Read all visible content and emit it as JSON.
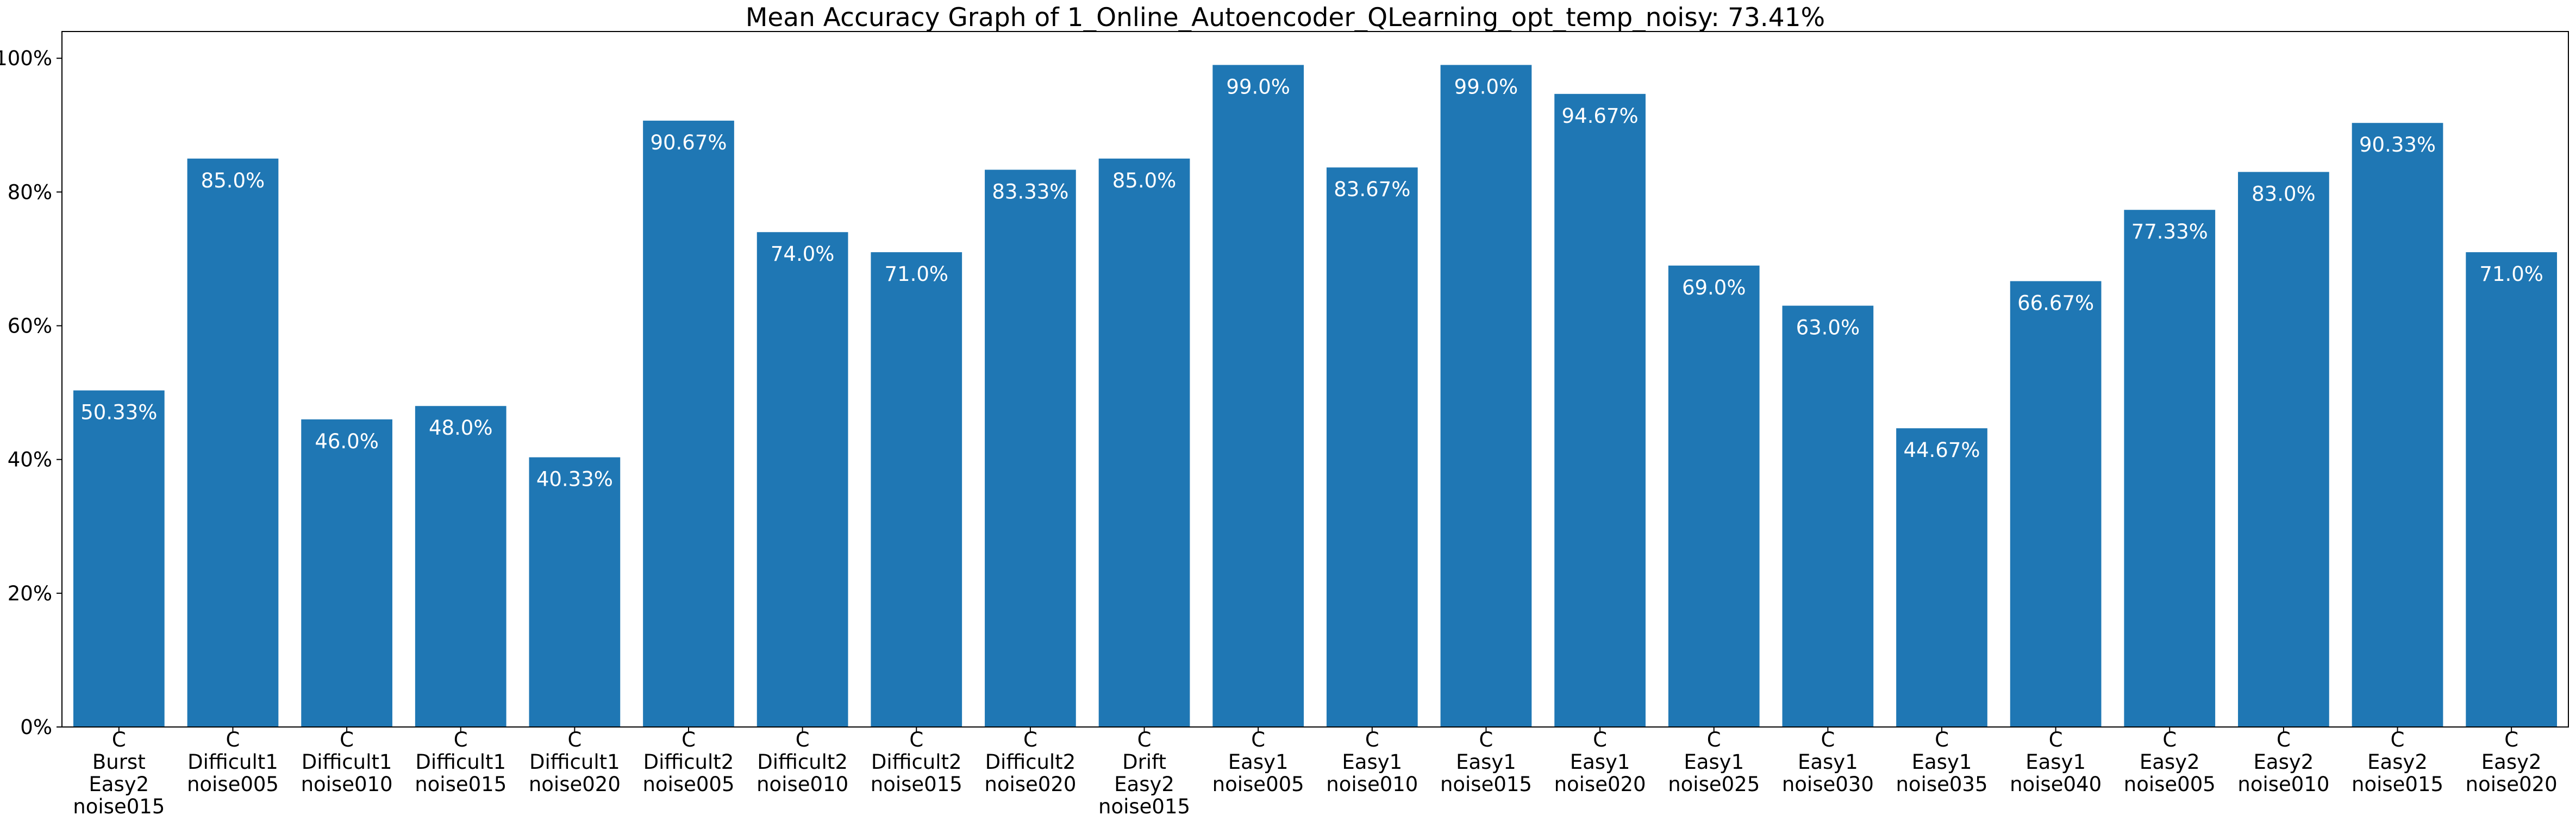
{
  "chart_data": {
    "type": "bar",
    "title": "Mean Accuracy Graph of 1_Online_Autoencoder_QLearning_opt_temp_noisy: 73.41%",
    "xlabel": "",
    "ylabel": "",
    "ylim": [
      0,
      104
    ],
    "grid": false,
    "legend": "none",
    "bar_color": "#1f77b4",
    "label_color": "#ffffff",
    "y_ticks": [
      {
        "value": 0,
        "label": "0%"
      },
      {
        "value": 20,
        "label": "20%"
      },
      {
        "value": 40,
        "label": "40%"
      },
      {
        "value": 60,
        "label": "60%"
      },
      {
        "value": 80,
        "label": "80%"
      },
      {
        "value": 100,
        "label": "100%"
      }
    ],
    "categories": [
      [
        "C",
        "Burst",
        "Easy2",
        "noise015"
      ],
      [
        "C",
        "Difficult1",
        "noise005"
      ],
      [
        "C",
        "Difficult1",
        "noise010"
      ],
      [
        "C",
        "Difficult1",
        "noise015"
      ],
      [
        "C",
        "Difficult1",
        "noise020"
      ],
      [
        "C",
        "Difficult2",
        "noise005"
      ],
      [
        "C",
        "Difficult2",
        "noise010"
      ],
      [
        "C",
        "Difficult2",
        "noise015"
      ],
      [
        "C",
        "Difficult2",
        "noise020"
      ],
      [
        "C",
        "Drift",
        "Easy2",
        "noise015"
      ],
      [
        "C",
        "Easy1",
        "noise005"
      ],
      [
        "C",
        "Easy1",
        "noise010"
      ],
      [
        "C",
        "Easy1",
        "noise015"
      ],
      [
        "C",
        "Easy1",
        "noise020"
      ],
      [
        "C",
        "Easy1",
        "noise025"
      ],
      [
        "C",
        "Easy1",
        "noise030"
      ],
      [
        "C",
        "Easy1",
        "noise035"
      ],
      [
        "C",
        "Easy1",
        "noise040"
      ],
      [
        "C",
        "Easy2",
        "noise005"
      ],
      [
        "C",
        "Easy2",
        "noise010"
      ],
      [
        "C",
        "Easy2",
        "noise015"
      ],
      [
        "C",
        "Easy2",
        "noise020"
      ]
    ],
    "values": [
      50.33,
      85.0,
      46.0,
      48.0,
      40.33,
      90.67,
      74.0,
      71.0,
      83.33,
      85.0,
      99.0,
      83.67,
      99.0,
      94.67,
      69.0,
      63.0,
      44.67,
      66.67,
      77.33,
      83.0,
      90.33,
      71.0
    ],
    "data_labels": [
      "50.33%",
      "85.0%",
      "46.0%",
      "48.0%",
      "40.33%",
      "90.67%",
      "74.0%",
      "71.0%",
      "83.33%",
      "85.0%",
      "99.0%",
      "83.67%",
      "99.0%",
      "94.67%",
      "69.0%",
      "63.0%",
      "44.67%",
      "66.67%",
      "77.33%",
      "83.0%",
      "90.33%",
      "71.0%"
    ]
  }
}
